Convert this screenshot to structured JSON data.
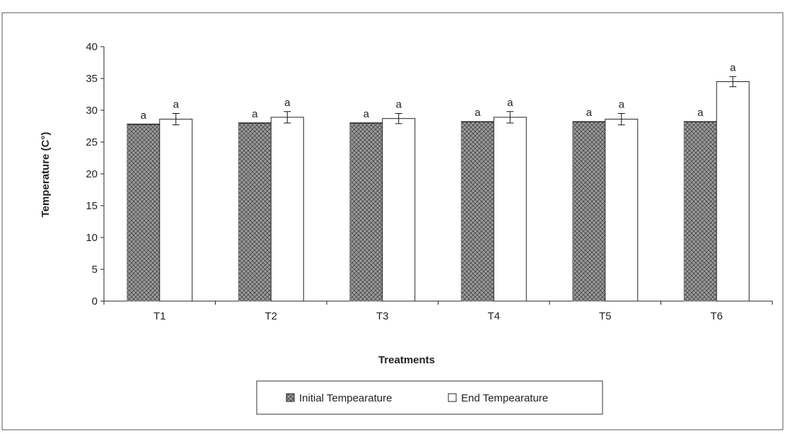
{
  "chart_data": {
    "type": "bar",
    "xlabel": "Treatments",
    "ylabel": "Temperature (C°)",
    "categories": [
      "T1",
      "T2",
      "T3",
      "T4",
      "T5",
      "T6"
    ],
    "ylim": [
      0,
      40
    ],
    "yticks": [
      0,
      5,
      10,
      15,
      20,
      25,
      30,
      35,
      40
    ],
    "grid": false,
    "legend_position": "bottom",
    "series": [
      {
        "name": "Initial Tempearature",
        "values": [
          27.8,
          28.0,
          28.0,
          28.2,
          28.2,
          28.2
        ],
        "error": [
          0,
          0,
          0,
          0,
          0,
          0
        ],
        "labels": [
          "a",
          "a",
          "a",
          "a",
          "a",
          "a"
        ],
        "fill": "pattern-crosshatch"
      },
      {
        "name": "End Tempearature",
        "values": [
          28.6,
          28.9,
          28.7,
          28.9,
          28.6,
          34.5
        ],
        "error": [
          0.9,
          0.9,
          0.8,
          0.9,
          0.9,
          0.8
        ],
        "labels": [
          "a",
          "a",
          "a",
          "a",
          "a",
          "a"
        ],
        "fill": "#ffffff"
      }
    ],
    "colors": {
      "hatch_bg": "#a8a8a8",
      "hatch_dark": "#444444",
      "outline": "#222222"
    }
  }
}
